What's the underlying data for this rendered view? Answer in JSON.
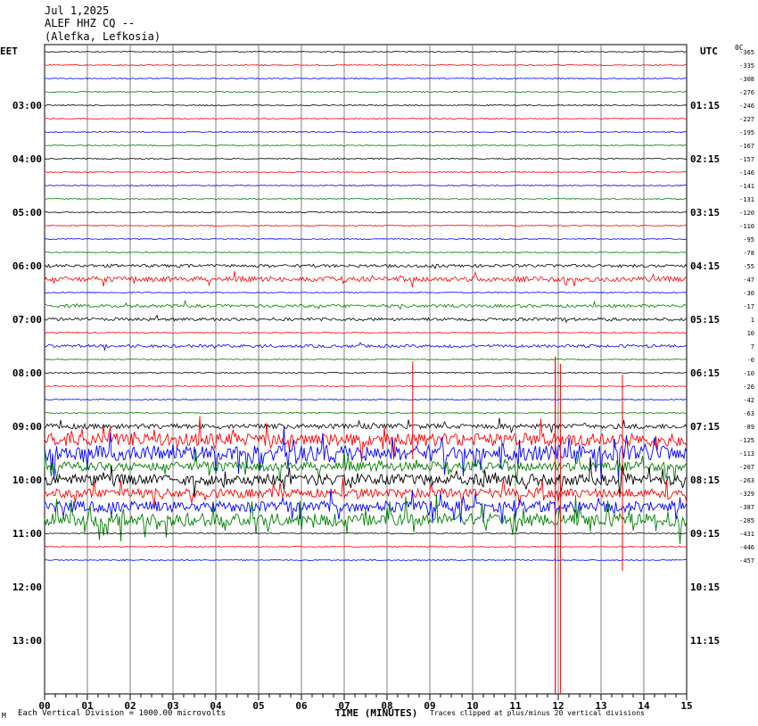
{
  "header": {
    "date": "Jul 1,2025",
    "station": "ALEF HHZ CQ --",
    "location": "(Alefka, Lefkosia)"
  },
  "left_tz": "EET",
  "right_tz": "UTC",
  "right_col_header": "0C",
  "footer": {
    "left_note": "Each Vertical Division = 1000.00 microvolts",
    "xlabel": "TIME (MINUTES)",
    "right_note": "Traces clipped at plus/minus 20 vertical divisions",
    "corner_mark": "M"
  },
  "colors": {
    "black": "#000000",
    "red": "#ff0000",
    "blue": "#0000ff",
    "green": "#008000",
    "grid": "#808080"
  },
  "chart_data": {
    "type": "line",
    "title": "ALEF HHZ CQ --",
    "xlabel": "TIME (MINUTES)",
    "xlim": [
      0,
      15
    ],
    "x_ticks": [
      "00",
      "01",
      "02",
      "03",
      "04",
      "05",
      "06",
      "07",
      "08",
      "09",
      "10",
      "11",
      "12",
      "13",
      "14",
      "15"
    ],
    "trace_interval_minutes": 15,
    "trace_color_cycle": [
      "black",
      "red",
      "blue",
      "green"
    ],
    "left_hour_labels": [
      "03:00",
      "04:00",
      "05:00",
      "06:00",
      "07:00",
      "08:00",
      "09:00",
      "10:00",
      "11:00",
      "12:00",
      "13:00"
    ],
    "right_hour_labels": [
      "01:15",
      "02:15",
      "03:15",
      "04:15",
      "05:15",
      "06:15",
      "07:15",
      "08:15",
      "09:15",
      "10:15",
      "11:15"
    ],
    "trace_offsets": [
      "-365",
      "-335",
      "-308",
      "-276",
      "-246",
      "-227",
      "-195",
      "-167",
      "-157",
      "-146",
      "-141",
      "-131",
      "-120",
      "-110",
      "-95",
      "-78",
      "-55",
      "-47",
      "-30",
      "-17",
      "1",
      "10",
      "7",
      "-0",
      "-10",
      "-26",
      "-42",
      "-63",
      "-89",
      "-125",
      "-113",
      "-207",
      "-263",
      "-329",
      "-387",
      "-285",
      "-431",
      "-446",
      "-457"
    ],
    "trace_activity": [
      0,
      0,
      0,
      0,
      0,
      0,
      0,
      0,
      0,
      0,
      0,
      0,
      0,
      0,
      0,
      0,
      1,
      2,
      0,
      1,
      1,
      0,
      1,
      0,
      0,
      0,
      0,
      0,
      2,
      6,
      7,
      4,
      5,
      4,
      5,
      6,
      0,
      0,
      0
    ]
  }
}
